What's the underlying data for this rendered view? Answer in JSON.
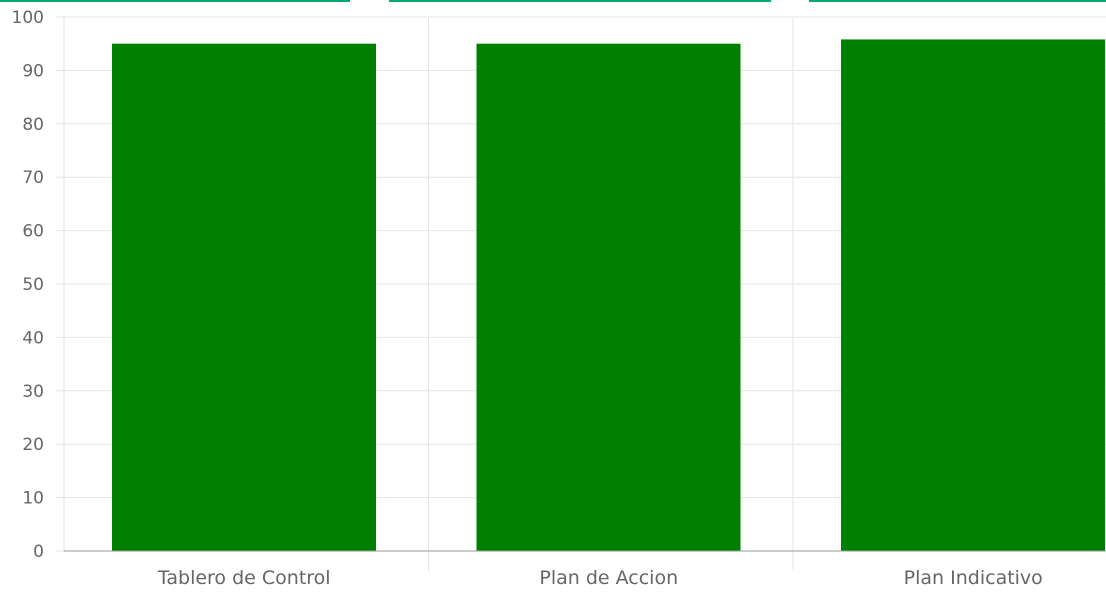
{
  "colors": {
    "bar": "#008000",
    "accent": "#00a86b",
    "grid": "#e6e6e6",
    "axis": "#999999",
    "text": "#666666"
  },
  "chart_data": {
    "type": "bar",
    "categories": [
      "Tablero de Control",
      "Plan de Accion",
      "Plan Indicativo"
    ],
    "values": [
      95,
      95,
      95.8
    ],
    "title": "",
    "xlabel": "",
    "ylabel": "",
    "ylim": [
      0,
      100
    ],
    "yticks": [
      "0",
      "10",
      "20",
      "30",
      "40",
      "50",
      "60",
      "70",
      "80",
      "90",
      "100"
    ],
    "grid": true,
    "legend": "none"
  }
}
